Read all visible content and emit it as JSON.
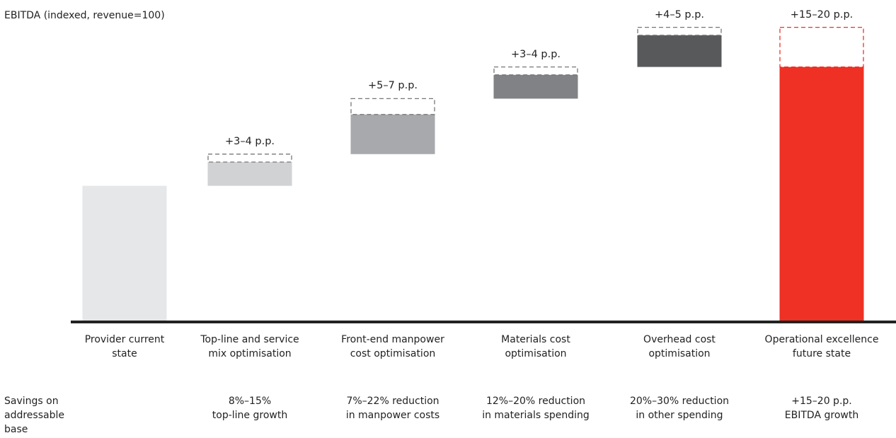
{
  "chart_data": {
    "type": "waterfall",
    "ylabel": "EBITDA (indexed, revenue=100)",
    "categories": [
      "Provider current\nstate",
      "Top-line and service\nmix optimisation",
      "Front-end manpower\ncost optimisation",
      "Materials cost\noptimisation",
      "Overhead cost\noptimisation",
      "Operational excellence\nfuture state"
    ],
    "values": [
      17,
      3,
      5,
      3,
      4,
      32
    ],
    "ranges": [
      null,
      1,
      2,
      1,
      1,
      5
    ],
    "value_labels": [
      null,
      "+3–4 p.p.",
      "+5–7 p.p.",
      "+3–4 p.p.",
      "+4–5 p.p.",
      "+15–20 p.p."
    ],
    "colors": [
      "#e6e7e8",
      "#d1d2d4",
      "#a7a9ac",
      "#808285",
      "#58595b",
      "#ee3124"
    ],
    "savings_label": "Savings on\naddressable\nbase",
    "savings": [
      null,
      "8%–15%\ntop-line growth",
      "7%–22% reduction\nin manpower costs",
      "12%–20% reduction\nin materials spending",
      "20%–30% reduction\nin other spending",
      "+15–20 p.p.\nEBITDA growth"
    ],
    "ylim": [
      0,
      40
    ]
  }
}
